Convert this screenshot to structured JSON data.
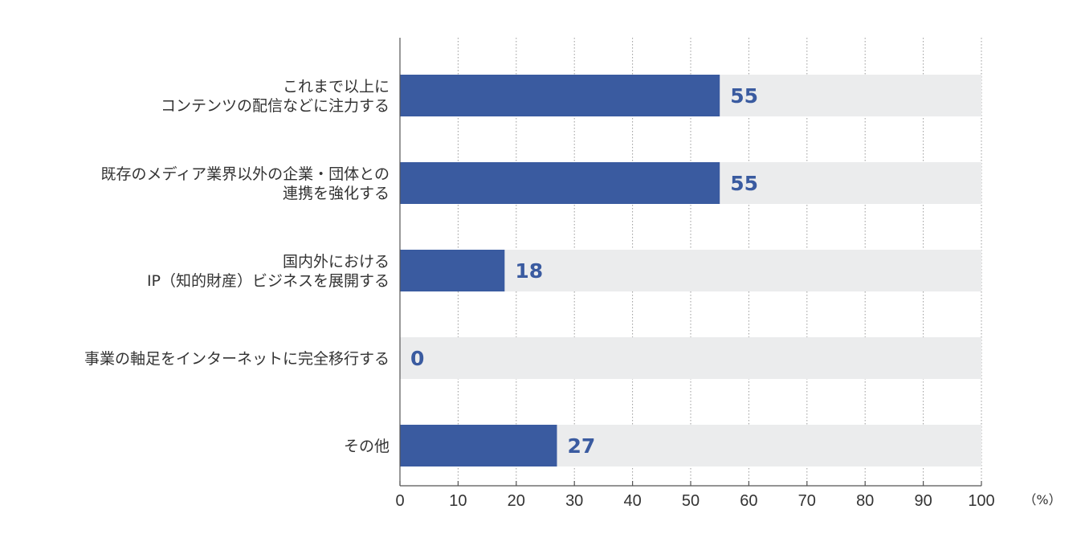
{
  "chart_data": {
    "type": "bar",
    "orientation": "horizontal",
    "categories": [
      [
        "これまで以上に",
        "コンテンツの配信などに注力する"
      ],
      [
        "既存のメディア業界以外の企業・団体との",
        "連携を強化する"
      ],
      [
        "国内外における",
        "IP（知的財産）ビジネスを展開する"
      ],
      [
        "事業の軸足をインターネットに完全移行する"
      ],
      [
        "その他"
      ]
    ],
    "values": [
      55,
      55,
      18,
      0,
      27
    ],
    "value_labels": [
      "55",
      "55",
      "18",
      "0",
      "27"
    ],
    "xlim": [
      0,
      100
    ],
    "xticks": [
      0,
      10,
      20,
      30,
      40,
      50,
      60,
      70,
      80,
      90,
      100
    ],
    "tick_labels": [
      "0",
      "10",
      "20",
      "30",
      "40",
      "50",
      "60",
      "70",
      "80",
      "90",
      "100"
    ],
    "unit": "（%）",
    "grid": true,
    "legend": "none",
    "colors": {
      "bar": "#3a5ba0",
      "track": "#ebeced",
      "value_text": "#3a5ba0",
      "axis": "#555555",
      "grid": "#9a9a9a"
    }
  }
}
